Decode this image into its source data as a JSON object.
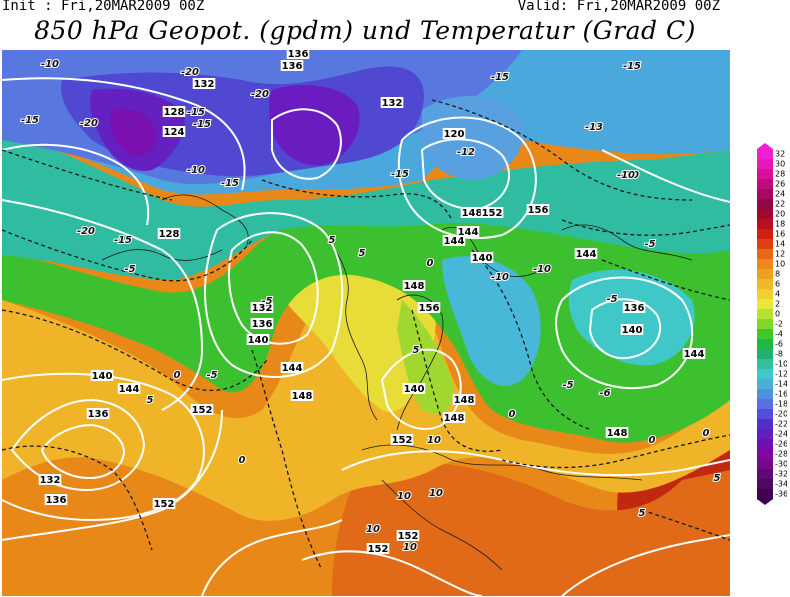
{
  "header": {
    "init": "Init : Fri,20MAR2009 00Z",
    "valid": "Valid: Fri,20MAR2009 00Z",
    "title": "850 hPa Geopot. (gpdm) und Temperatur (Grad C)"
  },
  "colorbar": {
    "ticks": [
      "32",
      "30",
      "28",
      "26",
      "24",
      "22",
      "20",
      "18",
      "16",
      "14",
      "12",
      "10",
      "8",
      "6",
      "4",
      "2",
      "0",
      "-2",
      "-4",
      "-6",
      "-8",
      "-10",
      "-12",
      "-14",
      "-16",
      "-18",
      "-20",
      "-22",
      "-24",
      "-26",
      "-28",
      "-30",
      "-32",
      "-34",
      "-36"
    ],
    "colors": [
      "#f020d0",
      "#e818b8",
      "#d81098",
      "#c00c78",
      "#a80860",
      "#900848",
      "#a00830",
      "#b81020",
      "#d02010",
      "#e04010",
      "#e86818",
      "#f08820",
      "#f0a020",
      "#f0b828",
      "#f0d030",
      "#e8e838",
      "#b8e030",
      "#80d828",
      "#40c828",
      "#20b840",
      "#20b070",
      "#30c0a0",
      "#40c8c8",
      "#48b0d8",
      "#5090e0",
      "#5870e0",
      "#5050d8",
      "#5030c8",
      "#6020c0",
      "#7010b0",
      "#8008a0",
      "#780890",
      "#600878",
      "#500868",
      "#400050"
    ]
  },
  "map": {
    "colors": {
      "warm_deep": "#c02810",
      "warm": "#e86818",
      "orange": "#f08820",
      "yellow": "#f0b830",
      "light_yellow": "#e8e040",
      "green": "#40c028",
      "teal": "#30c0a0",
      "cyan": "#40b8d8",
      "blue": "#5070e0",
      "indigo": "#5040d0",
      "purple": "#6020c0",
      "magenta": "#a00860"
    },
    "height_labels": [
      "132",
      "136",
      "136",
      "132",
      "128",
      "124",
      "120",
      "128",
      "132",
      "136",
      "140",
      "144",
      "148",
      "152",
      "156",
      "148",
      "144",
      "140",
      "136",
      "132",
      "136",
      "140",
      "144",
      "148",
      "152",
      "156",
      "148",
      "144",
      "140",
      "136",
      "152",
      "144",
      "148",
      "152",
      "152",
      "148",
      "144",
      "152",
      "140"
    ],
    "temp_labels": [
      "-10",
      "-15",
      "-20",
      "-20",
      "-20",
      "-15",
      "-15",
      "-10",
      "-15",
      "-20",
      "-15",
      "-15",
      "-12",
      "-13",
      "-15",
      "-10",
      "-15",
      "-10",
      "-5",
      "-5",
      "-5",
      "0",
      "0",
      "5",
      "5",
      "10",
      "10",
      "10",
      "10",
      "10",
      "-10",
      "-10",
      "-5",
      "-5",
      "0",
      "0",
      "5",
      "0",
      "5",
      "-6",
      "0",
      "5",
      "-5",
      "5"
    ]
  }
}
